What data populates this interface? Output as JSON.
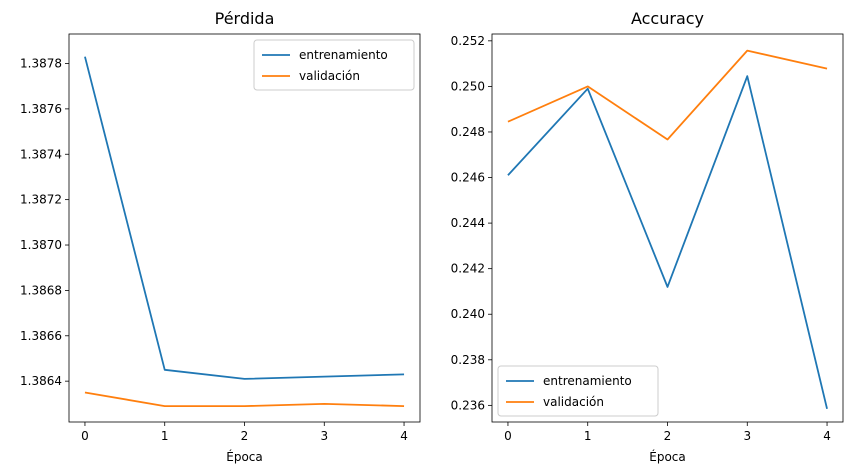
{
  "chart_data": [
    {
      "type": "line",
      "title": "Pérdida",
      "xlabel": "Época",
      "ylabel": "",
      "x": [
        0,
        1,
        2,
        3,
        4
      ],
      "xticks": [
        "0",
        "1",
        "2",
        "3",
        "4"
      ],
      "xlim": [
        -0.2,
        4.2
      ],
      "ylim": [
        1.38622,
        1.38793
      ],
      "yticks": [
        "1.3864",
        "1.3866",
        "1.3868",
        "1.3870",
        "1.3872",
        "1.3874",
        "1.3876",
        "1.3878"
      ],
      "grid": false,
      "legend_position": "upper right",
      "series": [
        {
          "name": "entrenamiento",
          "color": "#1f77b4",
          "values": [
            1.38783,
            1.38645,
            1.38641,
            1.38642,
            1.38643
          ]
        },
        {
          "name": "validación",
          "color": "#ff7f0e",
          "values": [
            1.38635,
            1.38629,
            1.38629,
            1.3863,
            1.38629
          ]
        }
      ]
    },
    {
      "type": "line",
      "title": "Accuracy",
      "xlabel": "Época",
      "ylabel": "",
      "x": [
        0,
        1,
        2,
        3,
        4
      ],
      "xticks": [
        "0",
        "1",
        "2",
        "3",
        "4"
      ],
      "xlim": [
        -0.2,
        4.2
      ],
      "ylim": [
        0.23527,
        0.2523
      ],
      "yticks": [
        "0.236",
        "0.238",
        "0.240",
        "0.242",
        "0.244",
        "0.246",
        "0.248",
        "0.250",
        "0.252"
      ],
      "grid": false,
      "legend_position": "lower left",
      "series": [
        {
          "name": "entrenamiento",
          "color": "#1f77b4",
          "values": [
            0.2461,
            0.2499,
            0.2412,
            0.25045,
            0.23585
          ]
        },
        {
          "name": "validación",
          "color": "#ff7f0e",
          "values": [
            0.24845,
            0.25,
            0.24767,
            0.25157,
            0.25078
          ]
        }
      ]
    }
  ]
}
